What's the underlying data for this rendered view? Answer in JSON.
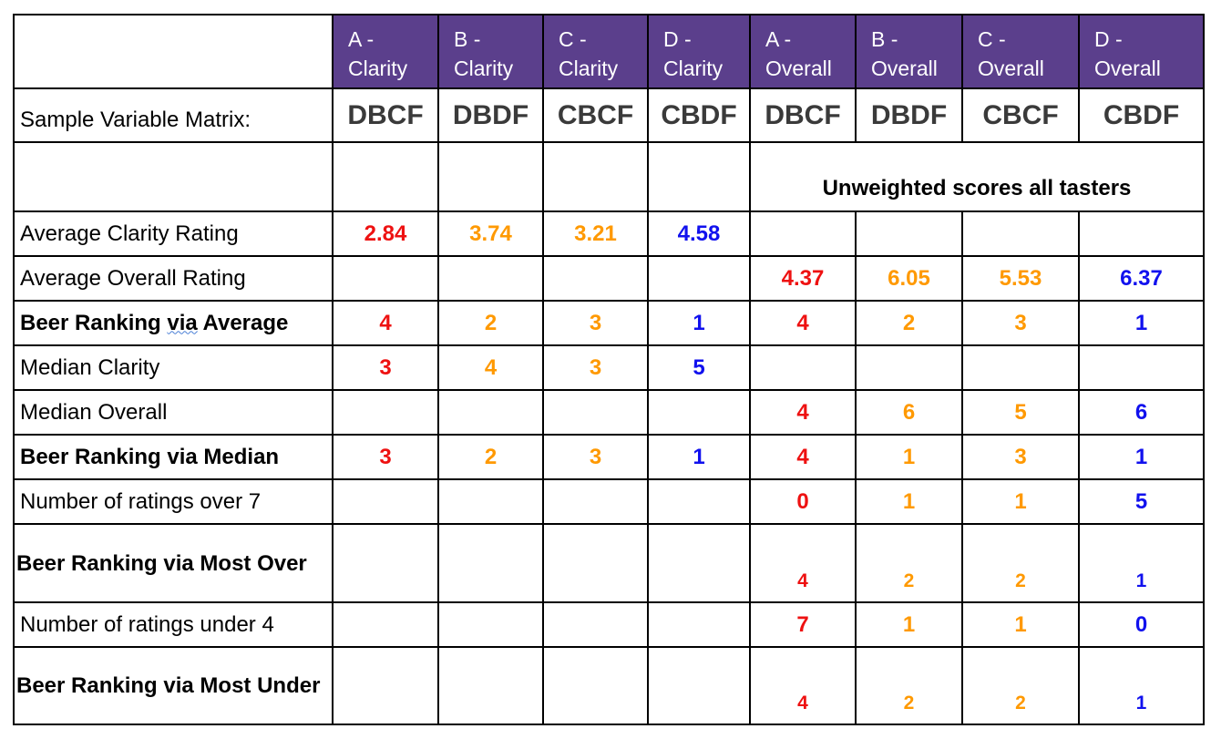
{
  "headers": [
    {
      "line1": "A -",
      "line2": "Clarity"
    },
    {
      "line1": "B -",
      "line2": "Clarity"
    },
    {
      "line1": "C -",
      "line2": "Clarity"
    },
    {
      "line1": "D -",
      "line2": "Clarity"
    },
    {
      "line1": "A -",
      "line2": "Overall"
    },
    {
      "line1": "B -",
      "line2": "Overall"
    },
    {
      "line1": "C -",
      "line2": "Overall"
    },
    {
      "line1": "D -",
      "line2": "Overall"
    }
  ],
  "matrix": {
    "label": "Sample Variable Matrix:",
    "codes": [
      "DBCF",
      "DBDF",
      "CBCF",
      "CBDF",
      "DBCF",
      "DBDF",
      "CBCF",
      "CBDF"
    ]
  },
  "banner": "Unweighted scores all tasters",
  "colors": {
    "header_bg": "#5b3f8c",
    "worst": "#ee1111",
    "middle": "#ff9900",
    "best": "#1111ee"
  },
  "rows": {
    "avg_clarity": {
      "label": "Average Clarity Rating",
      "values": [
        "2.84",
        "3.74",
        "3.21",
        "4.58"
      ]
    },
    "avg_overall": {
      "label": "Average Overall Rating",
      "values": [
        "4.37",
        "6.05",
        "5.53",
        "6.37"
      ]
    },
    "rank_avg": {
      "label_a": "Beer Ranking ",
      "label_b": "via",
      "label_c": " Average",
      "clarity": [
        "4",
        "2",
        "3",
        "1"
      ],
      "overall": [
        "4",
        "2",
        "3",
        "1"
      ]
    },
    "median_clarity": {
      "label": "Median Clarity",
      "values": [
        "3",
        "4",
        "3",
        "5"
      ]
    },
    "median_overall": {
      "label": "Median Overall",
      "values": [
        "4",
        "6",
        "5",
        "6"
      ]
    },
    "rank_median": {
      "label": "Beer Ranking via Median",
      "clarity": [
        "3",
        "2",
        "3",
        "1"
      ],
      "overall": [
        "4",
        "1",
        "3",
        "1"
      ]
    },
    "over7": {
      "label": "Number of ratings over 7",
      "values": [
        "0",
        "1",
        "1",
        "5"
      ]
    },
    "rank_most_over": {
      "label": "Beer Ranking via Most Over",
      "values": [
        "4",
        "2",
        "2",
        "1"
      ]
    },
    "under4": {
      "label": "Number of ratings under 4",
      "values": [
        "7",
        "1",
        "1",
        "0"
      ]
    },
    "rank_most_under": {
      "label": "Beer Ranking via Most Under",
      "values": [
        "4",
        "2",
        "2",
        "1"
      ]
    }
  }
}
